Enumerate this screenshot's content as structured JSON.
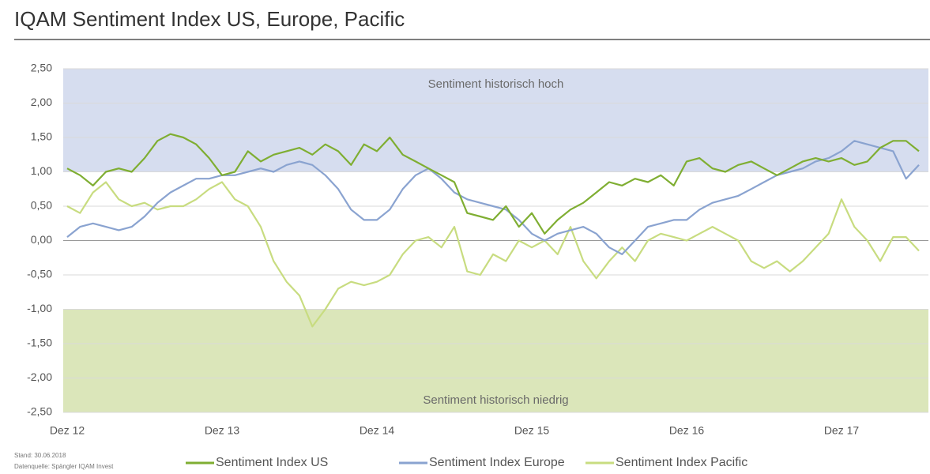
{
  "chart_data": {
    "type": "line",
    "title": "IQAM Sentiment Index US, Europe, Pacific",
    "categories": [
      "Dez 12",
      null,
      null,
      null,
      null,
      null,
      null,
      null,
      null,
      null,
      null,
      null,
      "Dez 13",
      null,
      null,
      null,
      null,
      null,
      null,
      null,
      null,
      null,
      null,
      null,
      "Dez 14",
      null,
      null,
      null,
      null,
      null,
      null,
      null,
      null,
      null,
      null,
      null,
      "Dez 15",
      null,
      null,
      null,
      null,
      null,
      null,
      null,
      null,
      null,
      null,
      null,
      "Dez 16",
      null,
      null,
      null,
      null,
      null,
      null,
      null,
      null,
      null,
      null,
      null,
      "Dez 17",
      null,
      null,
      null,
      null,
      null,
      null
    ],
    "series": [
      {
        "name": "Sentiment Index US",
        "color": "#7fae32",
        "values": [
          1.05,
          0.95,
          0.8,
          1.0,
          1.05,
          1.0,
          1.2,
          1.45,
          1.55,
          1.5,
          1.4,
          1.2,
          0.95,
          1.0,
          1.3,
          1.15,
          1.25,
          1.3,
          1.35,
          1.25,
          1.4,
          1.3,
          1.1,
          1.4,
          1.3,
          1.5,
          1.25,
          1.15,
          1.05,
          0.95,
          0.85,
          0.4,
          0.35,
          0.3,
          0.5,
          0.2,
          0.4,
          0.1,
          0.3,
          0.45,
          0.55,
          0.7,
          0.85,
          0.8,
          0.9,
          0.85,
          0.95,
          0.8,
          1.15,
          1.2,
          1.05,
          1.0,
          1.1,
          1.15,
          1.05,
          0.95,
          1.05,
          1.15,
          1.2,
          1.15,
          1.2,
          1.1,
          1.15,
          1.35,
          1.45,
          1.45,
          1.3
        ]
      },
      {
        "name": "Sentiment Index Europe",
        "color": "#8aa3d0",
        "values": [
          0.05,
          0.2,
          0.25,
          0.2,
          0.15,
          0.2,
          0.35,
          0.55,
          0.7,
          0.8,
          0.9,
          0.9,
          0.95,
          0.95,
          1.0,
          1.05,
          1.0,
          1.1,
          1.15,
          1.1,
          0.95,
          0.75,
          0.45,
          0.3,
          0.3,
          0.45,
          0.75,
          0.95,
          1.05,
          0.9,
          0.7,
          0.6,
          0.55,
          0.5,
          0.45,
          0.3,
          0.1,
          0.0,
          0.1,
          0.15,
          0.2,
          0.1,
          -0.1,
          -0.2,
          0.0,
          0.2,
          0.25,
          0.3,
          0.3,
          0.45,
          0.55,
          0.6,
          0.65,
          0.75,
          0.85,
          0.95,
          1.0,
          1.05,
          1.15,
          1.2,
          1.3,
          1.45,
          1.4,
          1.35,
          1.3,
          0.9,
          1.1
        ]
      },
      {
        "name": "Sentiment Index Pacific",
        "color": "#c8dc80",
        "values": [
          0.5,
          0.4,
          0.7,
          0.85,
          0.6,
          0.5,
          0.55,
          0.45,
          0.5,
          0.5,
          0.6,
          0.75,
          0.85,
          0.6,
          0.5,
          0.2,
          -0.3,
          -0.6,
          -0.8,
          -1.25,
          -1.0,
          -0.7,
          -0.6,
          -0.65,
          -0.6,
          -0.5,
          -0.2,
          0.0,
          0.05,
          -0.1,
          0.2,
          -0.45,
          -0.5,
          -0.2,
          -0.3,
          0.0,
          -0.1,
          0.0,
          -0.2,
          0.2,
          -0.3,
          -0.55,
          -0.3,
          -0.1,
          -0.3,
          0.0,
          0.1,
          0.05,
          0.0,
          0.1,
          0.2,
          0.1,
          0.0,
          -0.3,
          -0.4,
          -0.3,
          -0.45,
          -0.3,
          -0.1,
          0.1,
          0.6,
          0.2,
          0.0,
          -0.3,
          0.05,
          0.05,
          -0.15
        ]
      }
    ],
    "ylim": [
      -2.5,
      2.5
    ],
    "yticks": [
      {
        "value": -2.5,
        "label": "-2,50"
      },
      {
        "value": -2,
        "label": "-2,00"
      },
      {
        "value": -1.5,
        "label": "-1,50"
      },
      {
        "value": -1,
        "label": "-1,00"
      },
      {
        "value": -0.5,
        "label": "-0,50"
      },
      {
        "value": 0,
        "label": "0,00"
      },
      {
        "value": 0.5,
        "label": "0,50"
      },
      {
        "value": 1,
        "label": "1,00"
      },
      {
        "value": 1.5,
        "label": "1,50"
      },
      {
        "value": 2,
        "label": "2,00"
      },
      {
        "value": 2.5,
        "label": "2,50"
      }
    ],
    "grid": true,
    "bands": [
      {
        "label": "Sentiment historisch hoch",
        "from": 1,
        "to": 2.5,
        "color": "#d6ddef"
      },
      {
        "label": "Sentiment historisch niedrig",
        "from": -2.5,
        "to": -1,
        "color": "#dbe6ba"
      }
    ],
    "notes": [
      "Stand: 30.06.2018",
      "Datenquelle: Spängler IQAM Invest"
    ]
  }
}
